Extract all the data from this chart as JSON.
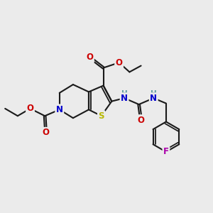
{
  "bg_color": "#ebebeb",
  "bond_color": "#1a1a1a",
  "bond_width": 1.5,
  "atom_colors": {
    "N": "#0000cc",
    "S": "#b8b800",
    "O": "#cc0000",
    "F": "#aa00aa",
    "H_label": "#5f9ea0",
    "C": "#1a1a1a"
  },
  "font_size_atom": 8.5,
  "font_size_small": 7.0
}
